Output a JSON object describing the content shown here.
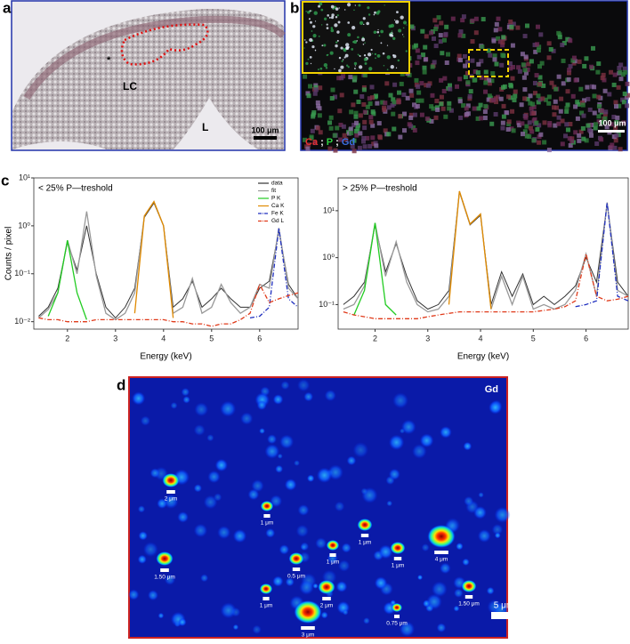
{
  "panels": {
    "a": {
      "label": "a",
      "annotations": [
        "*",
        "LC",
        "L"
      ],
      "scale_bar": "100 μm"
    },
    "b": {
      "label": "b",
      "scale_bar": "100 μm",
      "separator": ";",
      "channels": [
        {
          "name": "Ca",
          "color": "#e03030"
        },
        {
          "name": "P",
          "color": "#2ecc40"
        },
        {
          "name": "Gd",
          "color": "#3a6fe0"
        }
      ]
    },
    "c": {
      "label": "c"
    },
    "d": {
      "label": "d",
      "channel": "Gd",
      "scale_bar": "5 μm",
      "spots": [
        "2 μm",
        "1 μm",
        "1 μm",
        "1 μm",
        "1 μm",
        "4 μm",
        "0.5 μm",
        "1.50 μm",
        "1 μm",
        "2 μm",
        "3 μm",
        "0.75 μm",
        "1.50 μm"
      ]
    }
  },
  "chart_data": [
    {
      "type": "line",
      "title": "< 25% P—treshold",
      "x_label": "Energy (keV)",
      "y_label": "Counts / pixel",
      "log_y": true,
      "legend": "upper right",
      "xlim": [
        1.3,
        6.8
      ],
      "ylim": [
        0.007,
        10
      ],
      "xticks": [
        2,
        3,
        4,
        5,
        6
      ],
      "yticks": [
        {
          "value": 0.01,
          "label": "10⁻²"
        },
        {
          "value": 0.1,
          "label": "10⁻¹"
        },
        {
          "value": 1,
          "label": "10⁰"
        },
        {
          "value": 10,
          "label": "10¹"
        }
      ],
      "x": [
        1.4,
        1.6,
        1.8,
        2.0,
        2.2,
        2.4,
        2.6,
        2.8,
        3.0,
        3.2,
        3.4,
        3.6,
        3.8,
        4.0,
        4.2,
        4.4,
        4.6,
        4.8,
        5.0,
        5.2,
        5.4,
        5.6,
        5.8,
        6.0,
        6.2,
        6.4,
        6.6,
        6.8
      ],
      "series": [
        {
          "name": "data",
          "color": "#333333",
          "style": "solid",
          "values": [
            0.013,
            0.02,
            0.05,
            0.45,
            0.12,
            1.0,
            0.1,
            0.02,
            0.012,
            0.02,
            0.05,
            1.5,
            3,
            1.0,
            0.02,
            0.03,
            0.07,
            0.02,
            0.03,
            0.05,
            0.03,
            0.02,
            0.02,
            0.05,
            0.07,
            0.8,
            0.06,
            0.03
          ]
        },
        {
          "name": "fit",
          "color": "#999999",
          "style": "solid",
          "values": [
            0.012,
            0.018,
            0.04,
            0.5,
            0.1,
            2.0,
            0.09,
            0.015,
            0.011,
            0.015,
            0.04,
            1.6,
            3.2,
            1.0,
            0.015,
            0.02,
            0.08,
            0.015,
            0.02,
            0.06,
            0.025,
            0.015,
            0.02,
            0.06,
            0.05,
            0.9,
            0.05,
            0.03
          ]
        },
        {
          "name": "P K",
          "color": "#22cc22",
          "style": "solid",
          "values": [
            null,
            0.013,
            0.04,
            0.5,
            0.04,
            0.011,
            null,
            null,
            null,
            null,
            null,
            null,
            null,
            null,
            null,
            null,
            null,
            null,
            null,
            null,
            null,
            null,
            null,
            null,
            null,
            null,
            null,
            null
          ]
        },
        {
          "name": "Ca K",
          "color": "#e08a00",
          "style": "solid",
          "values": [
            null,
            null,
            null,
            null,
            null,
            null,
            null,
            null,
            null,
            null,
            0.015,
            1.6,
            3.2,
            1.0,
            0.012,
            null,
            null,
            null,
            null,
            null,
            null,
            null,
            null,
            null,
            null,
            null,
            null,
            null
          ]
        },
        {
          "name": "Fe K",
          "color": "#1f2fbf",
          "style": "dashdot",
          "values": [
            null,
            null,
            null,
            null,
            null,
            null,
            null,
            null,
            null,
            null,
            null,
            null,
            null,
            null,
            null,
            null,
            null,
            null,
            null,
            null,
            null,
            null,
            0.012,
            0.013,
            0.02,
            0.9,
            0.03,
            0.02
          ]
        },
        {
          "name": "Gd L",
          "color": "#e03a1a",
          "style": "dashdot",
          "values": [
            0.012,
            0.011,
            0.011,
            0.01,
            0.01,
            0.01,
            0.011,
            0.011,
            0.011,
            0.011,
            0.011,
            0.011,
            0.011,
            0.011,
            0.01,
            0.01,
            0.009,
            0.009,
            0.008,
            0.009,
            0.009,
            0.011,
            0.015,
            0.06,
            0.025,
            0.03,
            0.035,
            0.04
          ]
        }
      ]
    },
    {
      "type": "line",
      "title": "> 25% P—treshold",
      "x_label": "Energy (keV)",
      "log_y": true,
      "legend": false,
      "xlim": [
        1.3,
        6.8
      ],
      "ylim": [
        0.03,
        50
      ],
      "xticks": [
        2,
        3,
        4,
        5,
        6
      ],
      "yticks": [
        {
          "value": 0.1,
          "label": "10⁻¹"
        },
        {
          "value": 1,
          "label": "10⁰"
        },
        {
          "value": 10,
          "label": "10¹"
        }
      ],
      "x": [
        1.4,
        1.6,
        1.8,
        2.0,
        2.2,
        2.4,
        2.6,
        2.8,
        3.0,
        3.2,
        3.4,
        3.6,
        3.8,
        4.0,
        4.2,
        4.4,
        4.6,
        4.8,
        5.0,
        5.2,
        5.4,
        5.6,
        5.8,
        6.0,
        6.2,
        6.4,
        6.6,
        6.8
      ],
      "series": [
        {
          "name": "data",
          "color": "#333333",
          "style": "solid",
          "values": [
            0.1,
            0.15,
            0.3,
            5,
            0.5,
            2.0,
            0.4,
            0.12,
            0.08,
            0.1,
            0.2,
            25,
            5,
            8,
            0.1,
            0.5,
            0.15,
            0.45,
            0.1,
            0.15,
            0.1,
            0.15,
            0.25,
            1.0,
            0.3,
            14,
            0.3,
            0.15
          ]
        },
        {
          "name": "fit",
          "color": "#999999",
          "style": "solid",
          "values": [
            0.08,
            0.1,
            0.25,
            5.5,
            0.4,
            2.2,
            0.3,
            0.1,
            0.07,
            0.08,
            0.15,
            26,
            5.2,
            8.5,
            0.08,
            0.4,
            0.1,
            0.4,
            0.08,
            0.1,
            0.08,
            0.1,
            0.2,
            1.2,
            0.15,
            15,
            0.2,
            0.15
          ]
        },
        {
          "name": "P K",
          "color": "#22cc22",
          "style": "solid",
          "values": [
            null,
            0.06,
            0.2,
            5.5,
            0.1,
            0.06,
            null,
            null,
            null,
            null,
            null,
            null,
            null,
            null,
            null,
            null,
            null,
            null,
            null,
            null,
            null,
            null,
            null,
            null,
            null,
            null,
            null,
            null
          ]
        },
        {
          "name": "Ca K",
          "color": "#e08a00",
          "style": "solid",
          "values": [
            null,
            null,
            null,
            null,
            null,
            null,
            null,
            null,
            null,
            null,
            0.1,
            26,
            5.2,
            8.5,
            0.08,
            null,
            null,
            null,
            null,
            null,
            null,
            null,
            null,
            null,
            null,
            null,
            null,
            null
          ]
        },
        {
          "name": "Fe K",
          "color": "#1f2fbf",
          "style": "dashdot",
          "values": [
            null,
            null,
            null,
            null,
            null,
            null,
            null,
            null,
            null,
            null,
            null,
            null,
            null,
            null,
            null,
            null,
            null,
            null,
            null,
            null,
            null,
            null,
            0.09,
            0.1,
            0.12,
            15,
            0.15,
            0.12
          ]
        },
        {
          "name": "Gd L",
          "color": "#e03a1a",
          "style": "dashdot",
          "values": [
            0.07,
            0.06,
            0.055,
            0.05,
            0.05,
            0.05,
            0.05,
            0.05,
            0.055,
            0.06,
            0.065,
            0.07,
            0.07,
            0.07,
            0.07,
            0.07,
            0.07,
            0.07,
            0.07,
            0.075,
            0.08,
            0.09,
            0.12,
            1.2,
            0.15,
            0.12,
            0.13,
            0.15
          ]
        }
      ]
    }
  ]
}
